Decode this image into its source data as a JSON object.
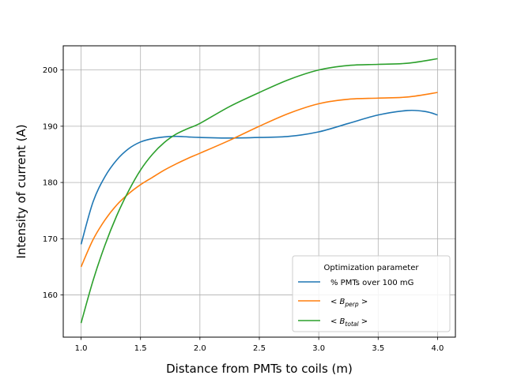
{
  "chart_data": {
    "type": "line",
    "title": "",
    "xlabel": "Distance from PMTs to coils (m)",
    "ylabel": "Intensity of current (A)",
    "xlim": [
      0.85,
      4.15
    ],
    "ylim": [
      152.5,
      204.3
    ],
    "xticks": [
      1.0,
      1.5,
      2.0,
      2.5,
      3.0,
      3.5,
      4.0
    ],
    "xtick_labels": [
      "1.0",
      "1.5",
      "2.0",
      "2.5",
      "3.0",
      "3.5",
      "4.0"
    ],
    "yticks": [
      160,
      170,
      180,
      190,
      200
    ],
    "ytick_labels": [
      "160",
      "170",
      "180",
      "190",
      "200"
    ],
    "grid": true,
    "legend": {
      "title": "Optimization parameter",
      "placement": "lower-right"
    },
    "series": [
      {
        "name": "% PMTs over 100 mG",
        "label_main": "% PMTs over 100 mG",
        "label_sub": "",
        "color": "#1f77b4",
        "x": [
          1.0,
          1.1,
          1.2,
          1.3,
          1.4,
          1.5,
          1.6,
          1.7,
          1.8,
          1.9,
          2.0,
          2.25,
          2.5,
          2.75,
          3.0,
          3.25,
          3.5,
          3.75,
          3.9,
          4.0
        ],
        "y": [
          169,
          176.5,
          181,
          184,
          186,
          187.2,
          187.8,
          188.1,
          188.2,
          188.1,
          188.0,
          187.9,
          188.0,
          188.2,
          189.0,
          190.5,
          192.0,
          192.8,
          192.6,
          192.0
        ]
      },
      {
        "name": "<B_perp>",
        "label_main": "< B",
        "label_sub": "perp",
        "label_end": " >",
        "color": "#ff7f0e",
        "x": [
          1.0,
          1.1,
          1.2,
          1.3,
          1.4,
          1.5,
          1.6,
          1.7,
          1.8,
          1.9,
          2.0,
          2.25,
          2.5,
          2.75,
          3.0,
          3.25,
          3.5,
          3.75,
          4.0
        ],
        "y": [
          165,
          169.8,
          173.3,
          176,
          178,
          179.6,
          180.9,
          182.2,
          183.3,
          184.3,
          185.2,
          187.5,
          190.0,
          192.3,
          194.0,
          194.8,
          195.0,
          195.2,
          196.0
        ]
      },
      {
        "name": "<B_total>",
        "label_main": "< B",
        "label_sub": "total",
        "label_end": " >",
        "color": "#2ca02c",
        "x": [
          1.0,
          1.1,
          1.2,
          1.3,
          1.4,
          1.5,
          1.6,
          1.7,
          1.8,
          1.9,
          2.0,
          2.25,
          2.5,
          2.75,
          3.0,
          3.25,
          3.5,
          3.75,
          4.0
        ],
        "y": [
          155,
          162.5,
          168.8,
          174.1,
          178.5,
          182.2,
          185.0,
          187.1,
          188.6,
          189.6,
          190.5,
          193.5,
          196.0,
          198.3,
          200.0,
          200.8,
          201.0,
          201.2,
          202.0
        ]
      }
    ]
  }
}
